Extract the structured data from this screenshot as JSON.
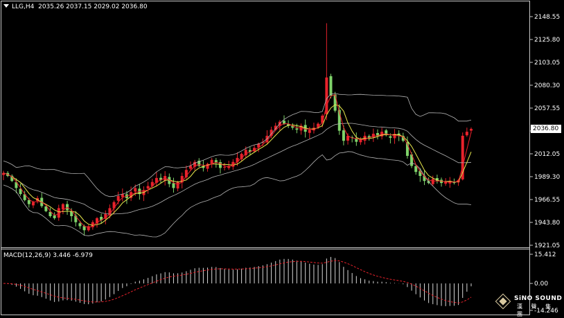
{
  "header": {
    "symbol": "LLG,H4",
    "ohlc": "2035.26 2037.15 2029.02 2036.80"
  },
  "macd": {
    "label": "MACD(12,26,9) 3.446 -6.979",
    "axis_ticks": [
      "15.412",
      "0.00",
      "-14.246"
    ],
    "values": [
      15.412,
      0.0,
      -14.246
    ]
  },
  "price_axis": {
    "ticks": [
      "2148.55",
      "2125.80",
      "2103.05",
      "2080.30",
      "2057.55",
      "2034.80",
      "2012.05",
      "1989.30",
      "1966.55",
      "1943.80",
      "1921.05"
    ],
    "values": [
      2148.55,
      2125.8,
      2103.05,
      2080.3,
      2057.55,
      2034.8,
      2012.05,
      1989.3,
      1966.55,
      1943.8,
      1921.05
    ]
  },
  "current_price": "2036.80",
  "logo": {
    "name": "SiNO SOUND",
    "cn": "漢 聲 集 團"
  },
  "colors": {
    "bull": "#e8222b",
    "bear": "#7fd36a",
    "band": "#b4b4b4",
    "ma": "#e8e84c",
    "signal": "#e8222b",
    "hist": "#d8d8d8",
    "background": "#000000"
  },
  "chart_data": {
    "type": "candlestick",
    "ylim": [
      1921.05,
      2148.55
    ],
    "close": [
      1993,
      1990,
      1985,
      1978,
      1972,
      1966,
      1962,
      1964,
      1968,
      1960,
      1955,
      1950,
      1948,
      1958,
      1962,
      1956,
      1950,
      1944,
      1940,
      1936,
      1940,
      1944,
      1948,
      1946,
      1952,
      1958,
      1964,
      1970,
      1972,
      1968,
      1974,
      1978,
      1972,
      1976,
      1980,
      1984,
      1988,
      1986,
      1990,
      1982,
      1978,
      1984,
      1990,
      1996,
      2000,
      2004,
      2000,
      1998,
      2002,
      2006,
      2003,
      1998,
      1999,
      2000,
      2004,
      2008,
      2012,
      2016,
      2014,
      2018,
      2022,
      2024,
      2030,
      2036,
      2040,
      2044,
      2042,
      2040,
      2038,
      2036,
      2040,
      2034,
      2036,
      2038,
      2042,
      2050,
      2088,
      2070,
      2055,
      2035,
      2025,
      2030,
      2028,
      2024,
      2026,
      2030,
      2028,
      2032,
      2030,
      2034,
      2031,
      2028,
      2032,
      2030,
      2025,
      2010,
      2000,
      1994,
      1990,
      1985,
      1983,
      1987,
      1985,
      1983,
      1984,
      1985,
      1983,
      1986,
      2030,
      2034,
      2036.8
    ],
    "bollinger": {
      "period": 20,
      "deviations": 2
    },
    "macd": {
      "fast": 12,
      "slow": 26,
      "signal": 9
    }
  }
}
